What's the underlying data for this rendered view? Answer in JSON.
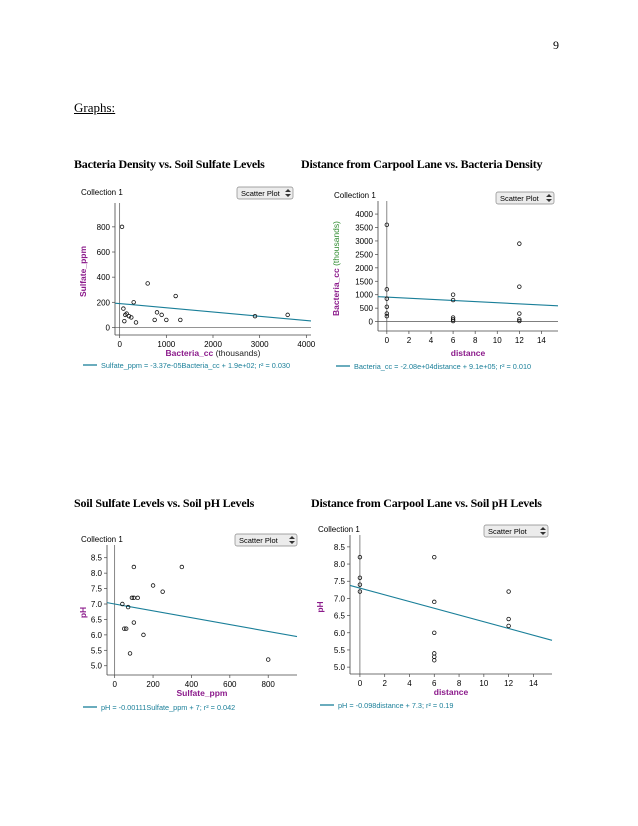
{
  "page": {
    "number": "9",
    "heading": "Graphs:"
  },
  "colors": {
    "axis_label": "#8b1a8b",
    "fit_line": "#1a7f99",
    "ylabel_green": "#2e8b2e"
  },
  "chart_data": [
    {
      "type": "scatter",
      "title": "Bacteria Density vs. Soil Sulfate Levels",
      "collection": "Collection 1",
      "dropdown": "Scatter Plot",
      "xlabel": "Bacteria_cc",
      "xlabel_suffix": " (thousands)",
      "ylabel": "Sulfate_ppm",
      "ylabel_suffix": "",
      "xlim": [
        -100,
        4100
      ],
      "ylim": [
        -60,
        950
      ],
      "xticks": [
        0,
        1000,
        2000,
        3000,
        4000
      ],
      "yticks": [
        0,
        200,
        400,
        600,
        800
      ],
      "x": [
        50,
        80,
        100,
        120,
        150,
        200,
        250,
        300,
        350,
        600,
        750,
        800,
        900,
        1000,
        1200,
        1300,
        2900,
        3600
      ],
      "y": [
        800,
        150,
        50,
        100,
        110,
        90,
        80,
        200,
        40,
        350,
        60,
        120,
        100,
        60,
        250,
        60,
        90,
        100
      ],
      "fit": {
        "slope": -0.0337,
        "intercept": 190
      },
      "equation": "Sulfate_ppm = -3.37e-05Bacteria_cc + 1.9e+02; r² = 0.030"
    },
    {
      "type": "scatter",
      "title": "Distance from Carpool Lane vs. Bacteria Density",
      "collection": "Collection 1",
      "dropdown": "Scatter Plot",
      "xlabel": "distance",
      "xlabel_suffix": "",
      "ylabel": "Bacteria_cc",
      "ylabel_suffix": " (thousands)",
      "xlim": [
        -0.8,
        15.5
      ],
      "ylim": [
        -350,
        4300
      ],
      "xticks": [
        0,
        2,
        4,
        6,
        8,
        10,
        12,
        14
      ],
      "yticks": [
        0,
        500,
        1000,
        1500,
        2000,
        2500,
        3000,
        3500,
        4000
      ],
      "x": [
        0,
        0,
        0,
        0,
        0,
        0,
        6,
        6,
        6,
        6,
        6,
        12,
        12,
        12,
        12,
        12
      ],
      "y": [
        3600,
        1200,
        850,
        550,
        300,
        200,
        1000,
        800,
        150,
        80,
        20,
        2900,
        1300,
        300,
        80,
        20
      ],
      "fit": {
        "slope": -20.8,
        "intercept": 910
      },
      "equation": "Bacteria_cc = -2.08e+04distance + 9.1e+05; r² = 0.010"
    },
    {
      "type": "scatter",
      "title": "Soil Sulfate Levels vs. Soil pH Levels",
      "collection": "Collection 1",
      "dropdown": "Scatter Plot",
      "xlabel": "Sulfate_ppm",
      "xlabel_suffix": "",
      "ylabel": "pH",
      "ylabel_suffix": "",
      "xlim": [
        -40,
        950
      ],
      "ylim": [
        4.7,
        8.75
      ],
      "xticks": [
        0,
        200,
        400,
        600,
        800
      ],
      "yticks": [
        5.0,
        5.5,
        6.0,
        6.5,
        7.0,
        7.5,
        8.0,
        8.5
      ],
      "x": [
        40,
        50,
        60,
        70,
        80,
        90,
        100,
        100,
        100,
        120,
        150,
        200,
        250,
        350,
        800
      ],
      "y": [
        7.0,
        6.2,
        6.2,
        6.9,
        5.4,
        7.2,
        7.2,
        8.2,
        6.4,
        7.2,
        6.0,
        7.6,
        7.4,
        8.2,
        5.2
      ],
      "fit": {
        "slope": -0.00111,
        "intercept": 7.0
      },
      "equation": "pH = -0.00111Sulfate_ppm + 7; r² = 0.042"
    },
    {
      "type": "scatter",
      "title": "Distance from Carpool Lane vs. Soil pH Levels",
      "collection": "Collection 1",
      "dropdown": "Scatter Plot",
      "xlabel": "distance",
      "xlabel_suffix": "",
      "ylabel": "pH",
      "ylabel_suffix": "",
      "xlim": [
        -0.8,
        15.5
      ],
      "ylim": [
        4.8,
        8.7
      ],
      "xticks": [
        0,
        2,
        4,
        6,
        8,
        10,
        12,
        14
      ],
      "yticks": [
        5.0,
        5.5,
        6.0,
        6.5,
        7.0,
        7.5,
        8.0,
        8.5
      ],
      "x": [
        0,
        0,
        0,
        0,
        6,
        6,
        6,
        6,
        6,
        6,
        12,
        12,
        12
      ],
      "y": [
        8.2,
        7.6,
        7.4,
        7.2,
        8.2,
        6.9,
        6.0,
        5.4,
        5.3,
        5.2,
        7.2,
        6.4,
        6.2
      ],
      "fit": {
        "slope": -0.098,
        "intercept": 7.3
      },
      "equation": "pH = -0.098distance + 7.3; r² = 0.19"
    }
  ]
}
